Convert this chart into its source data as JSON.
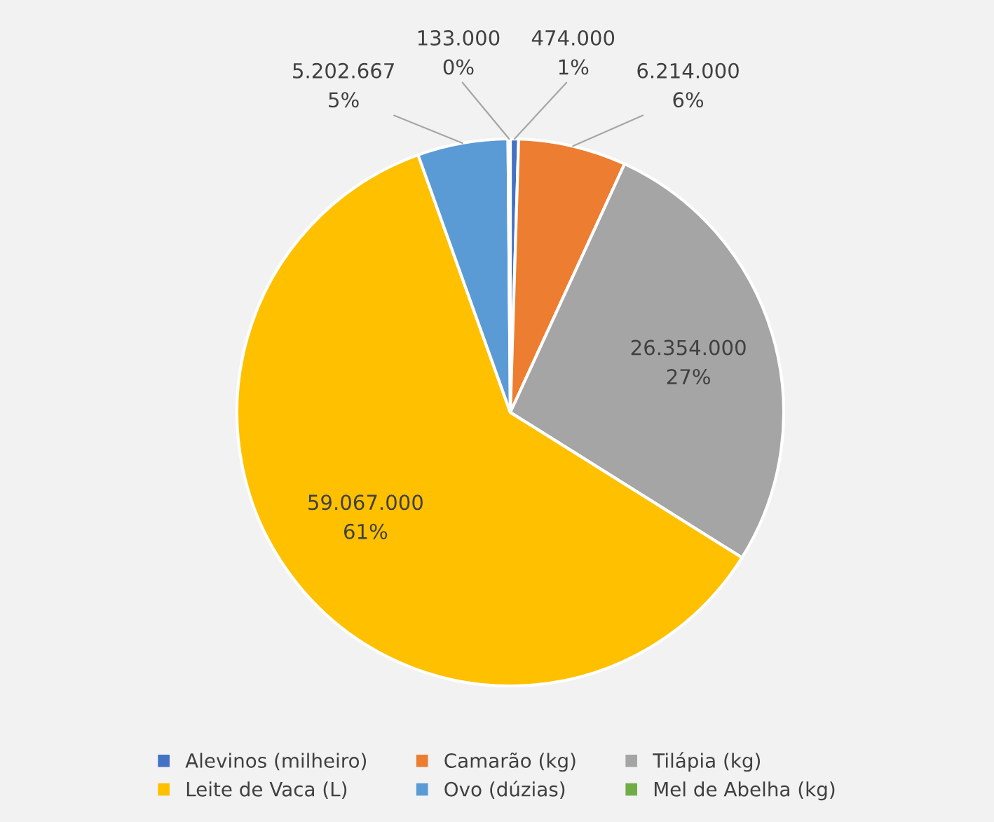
{
  "chart_data": {
    "type": "pie",
    "categories": [
      "Alevinos (milheiro)",
      "Camarão (kg)",
      "Tilápia (kg)",
      "Leite de Vaca (L)",
      "Ovo (dúzias)",
      "Mel de Abelha (kg)"
    ],
    "values": [
      474000,
      6214000,
      26354000,
      59067000,
      5202667,
      133000
    ],
    "colors": [
      "#4472c4",
      "#ed7d31",
      "#a5a5a5",
      "#ffc000",
      "#5b9bd5",
      "#70ad47"
    ],
    "value_labels": [
      "474.000\n1%",
      "6.214.000\n6%",
      "26.354.000\n27%",
      "59.067.000\n61%",
      "5.202.667\n5%",
      "133.000\n0%"
    ],
    "legend": "bottom"
  }
}
